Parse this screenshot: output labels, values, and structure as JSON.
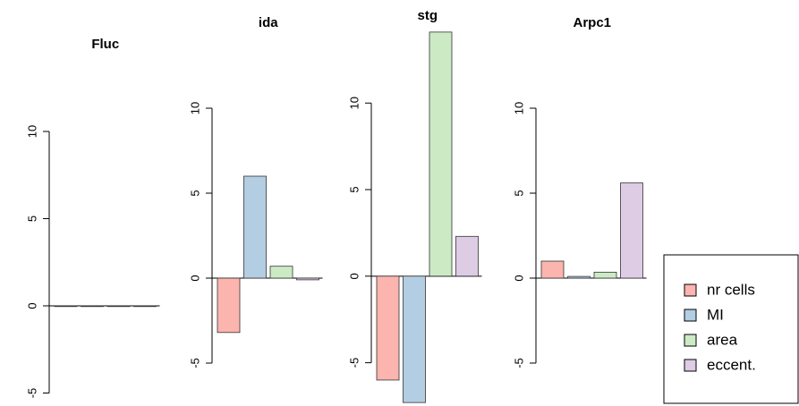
{
  "chart_data": [
    {
      "type": "bar",
      "title": "Fluc",
      "values": [
        0,
        0,
        0,
        0
      ],
      "ylim": [
        -6,
        12
      ],
      "yticks": [
        -5,
        0,
        5,
        10
      ]
    },
    {
      "type": "bar",
      "title": "ida",
      "values": [
        -3.2,
        6.0,
        0.7,
        -0.1
      ],
      "ylim": [
        -6,
        12
      ],
      "yticks": [
        -5,
        0,
        5,
        10
      ]
    },
    {
      "type": "bar",
      "title": "stg",
      "values": [
        -6.0,
        -7.3,
        14.1,
        2.3
      ],
      "ylim": [
        -7.5,
        14.3
      ],
      "yticks": [
        -5,
        0,
        5,
        10
      ]
    },
    {
      "type": "bar",
      "title": "Arpc1",
      "values": [
        1.0,
        0.1,
        0.35,
        5.6
      ],
      "ylim": [
        -6,
        12
      ],
      "yticks": [
        -5,
        0,
        5,
        10
      ]
    }
  ],
  "legend": {
    "items": [
      {
        "name": "nr cells",
        "color": "#fbb4ae"
      },
      {
        "name": "MI",
        "color": "#b3cde3"
      },
      {
        "name": "area",
        "color": "#ccebc5"
      },
      {
        "name": "eccent.",
        "color": "#decbe4"
      }
    ]
  }
}
